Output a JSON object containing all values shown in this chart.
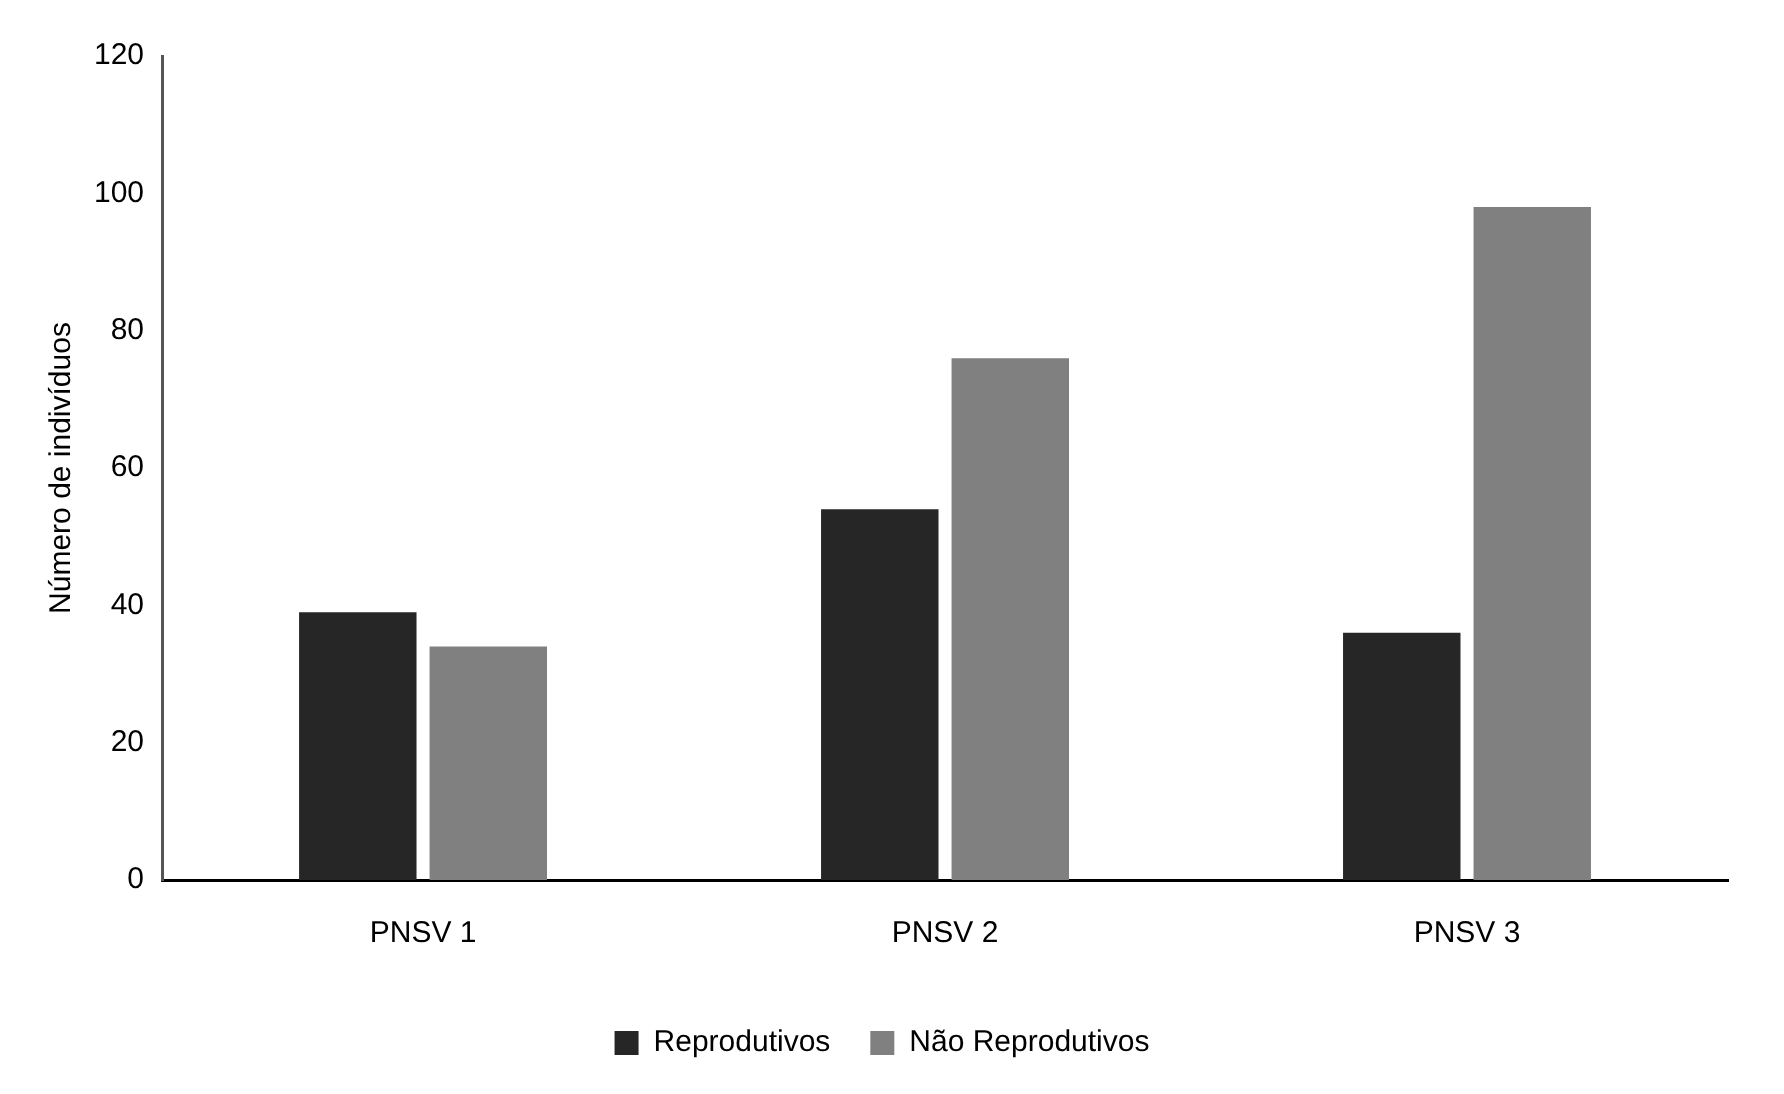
{
  "chart_data": {
    "type": "bar",
    "ylabel": "Número de indivíduos",
    "categories": [
      "PNSV 1",
      "PNSV 2",
      "PNSV 3"
    ],
    "series": [
      {
        "name": "Reprodutivos",
        "color": "#262626",
        "values": [
          39,
          54,
          36
        ]
      },
      {
        "name": "Não Reprodutivos",
        "color": "#808080",
        "values": [
          34,
          76,
          98
        ]
      }
    ],
    "ylim": [
      0,
      120
    ],
    "yticks": [
      0,
      20,
      40,
      60,
      80,
      100,
      120
    ],
    "grid": false,
    "legend": "bottom"
  }
}
